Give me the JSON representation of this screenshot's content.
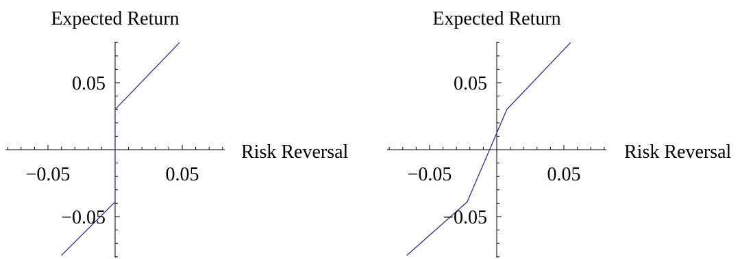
{
  "chart_data": [
    {
      "type": "line",
      "ylabel": "Expected Return",
      "xlabel": "Risk Reversal",
      "xlim": [
        -0.085,
        0.085
      ],
      "ylim": [
        -0.085,
        0.085
      ],
      "x_ticks": [
        -0.05,
        0.05
      ],
      "x_tick_labels": [
        "−0.05",
        "0.05"
      ],
      "y_ticks": [
        0.05,
        -0.05
      ],
      "y_tick_labels": [
        "0.05",
        "−0.05"
      ],
      "grid": false,
      "series": [
        {
          "x": [
            0,
            0.048
          ],
          "y": [
            0.03,
            0.08
          ]
        },
        {
          "x": [
            0,
            0
          ],
          "y": [
            0.03,
            -0.039
          ]
        },
        {
          "x": [
            0,
            -0.04
          ],
          "y": [
            -0.039,
            -0.079
          ]
        }
      ]
    },
    {
      "type": "line",
      "ylabel": "Expected Return",
      "xlabel": "Risk Reversal",
      "xlim": [
        -0.085,
        0.085
      ],
      "ylim": [
        -0.085,
        0.085
      ],
      "x_ticks": [
        -0.05,
        0.05
      ],
      "x_tick_labels": [
        "−0.05",
        "0.05"
      ],
      "y_ticks": [
        0.05,
        -0.05
      ],
      "y_tick_labels": [
        "0.05",
        "−0.05"
      ],
      "grid": false,
      "series": [
        {
          "x": [
            -0.067,
            -0.022,
            0.0075,
            0.055
          ],
          "y": [
            -0.079,
            -0.039,
            0.03,
            0.08
          ]
        }
      ]
    }
  ],
  "colors": {
    "series": "#3b3b8f",
    "axis": "#000000"
  }
}
